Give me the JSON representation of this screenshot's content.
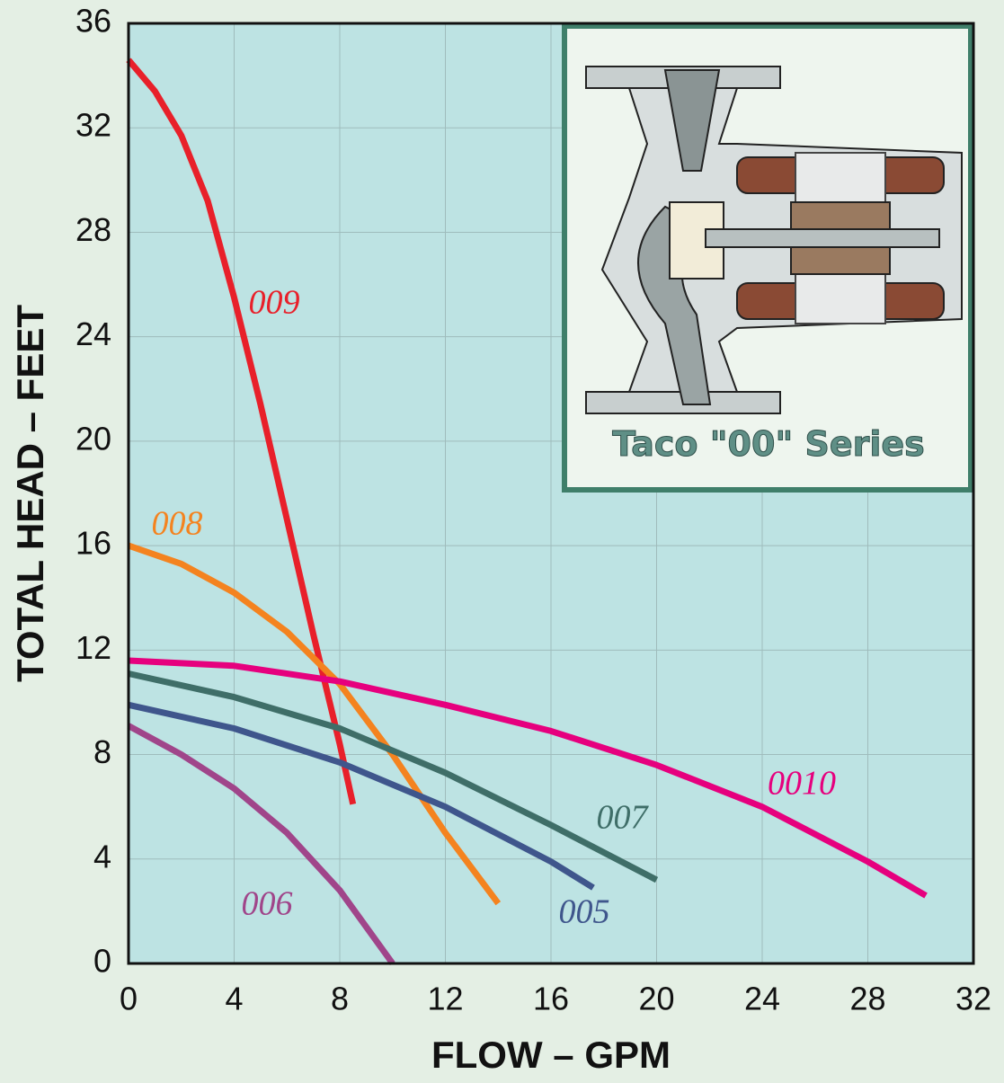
{
  "chart_data": {
    "type": "line",
    "xlabel": "FLOW  –  GPM",
    "ylabel": "TOTAL HEAD  –  FEET",
    "xlim": [
      0,
      32
    ],
    "ylim": [
      0,
      36
    ],
    "xticks": [
      0,
      4,
      8,
      12,
      16,
      20,
      24,
      28,
      32
    ],
    "yticks": [
      0,
      4,
      8,
      12,
      16,
      20,
      24,
      28,
      32,
      36
    ],
    "grid": true,
    "inset_label": "Taco \"00\" Series",
    "series": [
      {
        "name": "009",
        "color": "#e8202a",
        "x": [
          0,
          1,
          2,
          3,
          4,
          5,
          6,
          7,
          8,
          8.5
        ],
        "values": [
          34.6,
          33.4,
          31.7,
          29.2,
          25.5,
          21.4,
          17,
          12.6,
          8.4,
          6.1
        ]
      },
      {
        "name": "008",
        "color": "#f4831f",
        "x": [
          0,
          2,
          4,
          6,
          8,
          10,
          12,
          14
        ],
        "values": [
          16,
          15.3,
          14.2,
          12.7,
          10.7,
          8,
          5,
          2.3
        ]
      },
      {
        "name": "0010",
        "color": "#e6007e",
        "x": [
          0,
          4,
          8,
          12,
          16,
          20,
          24,
          28,
          30.2
        ],
        "values": [
          11.6,
          11.4,
          10.8,
          9.9,
          8.9,
          7.6,
          6,
          3.9,
          2.6
        ]
      },
      {
        "name": "007",
        "color": "#3f6e68",
        "x": [
          0,
          4,
          8,
          12,
          16,
          20
        ],
        "values": [
          11.1,
          10.2,
          9,
          7.3,
          5.3,
          3.2
        ]
      },
      {
        "name": "005",
        "color": "#3f568c",
        "x": [
          0,
          4,
          8,
          12,
          16,
          17.6
        ],
        "values": [
          9.9,
          9,
          7.7,
          6,
          3.9,
          2.9
        ]
      },
      {
        "name": "006",
        "color": "#a0458a",
        "x": [
          0,
          2,
          4,
          6,
          8,
          10
        ],
        "values": [
          9.1,
          8,
          6.7,
          5,
          2.8,
          0
        ]
      }
    ]
  }
}
